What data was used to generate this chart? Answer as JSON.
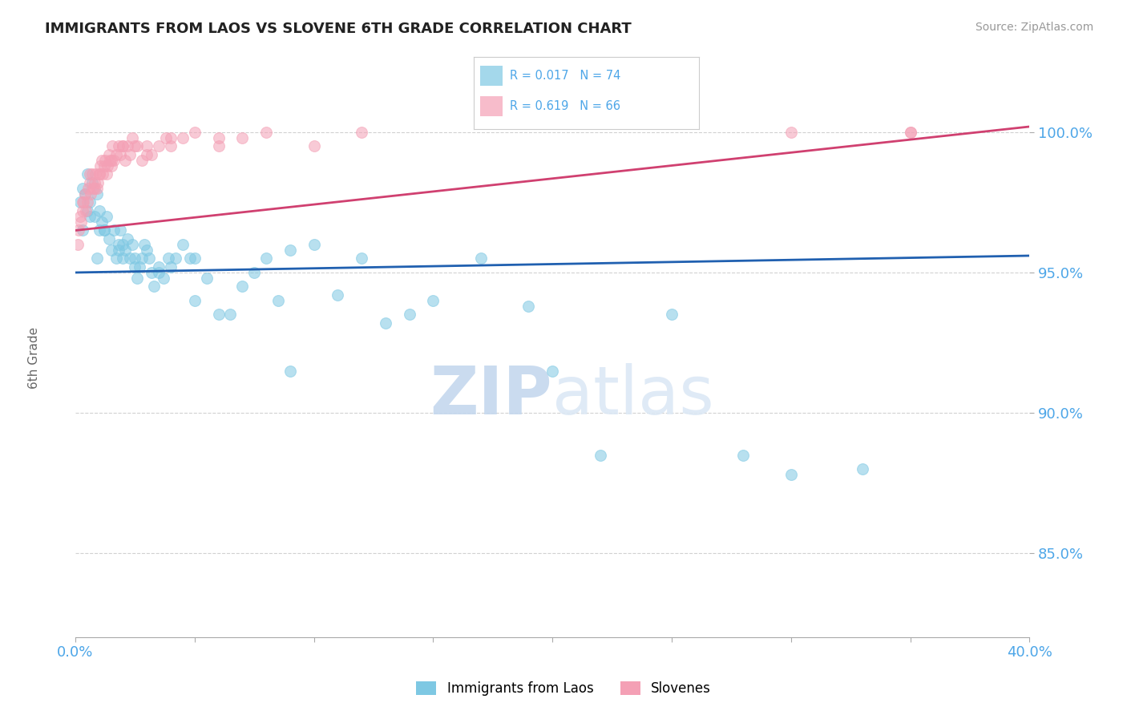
{
  "title": "IMMIGRANTS FROM LAOS VS SLOVENE 6TH GRADE CORRELATION CHART",
  "source_text": "Source: ZipAtlas.com",
  "ylabel": "6th Grade",
  "xlim": [
    0.0,
    40.0
  ],
  "ylim": [
    82.0,
    102.5
  ],
  "yticks": [
    85.0,
    90.0,
    95.0,
    100.0
  ],
  "xticks": [
    0.0,
    5.0,
    10.0,
    15.0,
    20.0,
    25.0,
    30.0,
    35.0,
    40.0
  ],
  "blue_R": 0.017,
  "blue_N": 74,
  "pink_R": 0.619,
  "pink_N": 66,
  "blue_color": "#7ec8e3",
  "pink_color": "#f4a0b5",
  "blue_line_color": "#2060b0",
  "pink_line_color": "#d04070",
  "legend_color": "#4da6e8",
  "background_color": "#ffffff",
  "watermark_color": "#dce8f5",
  "grid_color": "#cccccc",
  "axis_color": "#aaaaaa",
  "blue_x": [
    0.2,
    0.3,
    0.4,
    0.5,
    0.5,
    0.6,
    0.7,
    0.8,
    0.9,
    1.0,
    1.0,
    1.1,
    1.2,
    1.3,
    1.4,
    1.5,
    1.6,
    1.7,
    1.8,
    1.9,
    2.0,
    2.0,
    2.1,
    2.2,
    2.3,
    2.4,
    2.5,
    2.6,
    2.7,
    2.8,
    2.9,
    3.0,
    3.1,
    3.2,
    3.3,
    3.5,
    3.7,
    3.9,
    4.0,
    4.2,
    4.5,
    4.8,
    5.0,
    5.5,
    6.0,
    6.5,
    7.0,
    7.5,
    8.0,
    8.5,
    9.0,
    10.0,
    11.0,
    12.0,
    13.0,
    14.0,
    15.0,
    17.0,
    19.0,
    22.0,
    25.0,
    28.0,
    30.0,
    33.0,
    0.3,
    0.6,
    0.9,
    1.2,
    1.8,
    2.5,
    3.5,
    5.0,
    9.0,
    20.0
  ],
  "blue_y": [
    97.5,
    98.0,
    97.8,
    97.2,
    98.5,
    97.5,
    98.2,
    97.0,
    97.8,
    96.5,
    97.2,
    96.8,
    96.5,
    97.0,
    96.2,
    95.8,
    96.5,
    95.5,
    96.0,
    96.5,
    95.5,
    96.0,
    95.8,
    96.2,
    95.5,
    96.0,
    95.5,
    94.8,
    95.2,
    95.5,
    96.0,
    95.8,
    95.5,
    95.0,
    94.5,
    95.2,
    94.8,
    95.5,
    95.2,
    95.5,
    96.0,
    95.5,
    95.5,
    94.8,
    93.5,
    93.5,
    94.5,
    95.0,
    95.5,
    94.0,
    95.8,
    96.0,
    94.2,
    95.5,
    93.2,
    93.5,
    94.0,
    95.5,
    93.8,
    88.5,
    93.5,
    88.5,
    87.8,
    88.0,
    96.5,
    97.0,
    95.5,
    96.5,
    95.8,
    95.2,
    95.0,
    94.0,
    91.5,
    91.5
  ],
  "pink_x": [
    0.1,
    0.15,
    0.2,
    0.25,
    0.3,
    0.35,
    0.4,
    0.45,
    0.5,
    0.55,
    0.6,
    0.65,
    0.7,
    0.75,
    0.8,
    0.85,
    0.9,
    0.95,
    1.0,
    1.05,
    1.1,
    1.15,
    1.2,
    1.25,
    1.3,
    1.35,
    1.4,
    1.45,
    1.5,
    1.55,
    1.6,
    1.7,
    1.8,
    1.9,
    2.0,
    2.1,
    2.2,
    2.3,
    2.4,
    2.5,
    2.6,
    2.8,
    3.0,
    3.2,
    3.5,
    3.8,
    4.0,
    4.5,
    5.0,
    6.0,
    7.0,
    8.0,
    10.0,
    12.0,
    30.0,
    35.0,
    0.3,
    0.6,
    0.8,
    1.0,
    1.5,
    2.0,
    3.0,
    4.0,
    6.0,
    35.0
  ],
  "pink_y": [
    96.0,
    96.5,
    97.0,
    96.8,
    97.2,
    97.5,
    97.8,
    97.2,
    97.5,
    98.0,
    98.2,
    97.8,
    98.5,
    98.0,
    98.2,
    98.5,
    98.0,
    98.2,
    98.5,
    98.8,
    99.0,
    98.5,
    98.8,
    99.0,
    98.5,
    98.8,
    99.2,
    99.0,
    98.8,
    99.5,
    99.0,
    99.2,
    99.5,
    99.2,
    99.5,
    99.0,
    99.5,
    99.2,
    99.8,
    99.5,
    99.5,
    99.0,
    99.5,
    99.2,
    99.5,
    99.8,
    99.5,
    99.8,
    100.0,
    99.5,
    99.8,
    100.0,
    99.5,
    100.0,
    100.0,
    100.0,
    97.5,
    98.5,
    98.0,
    98.5,
    99.0,
    99.5,
    99.2,
    99.8,
    99.8,
    100.0
  ]
}
